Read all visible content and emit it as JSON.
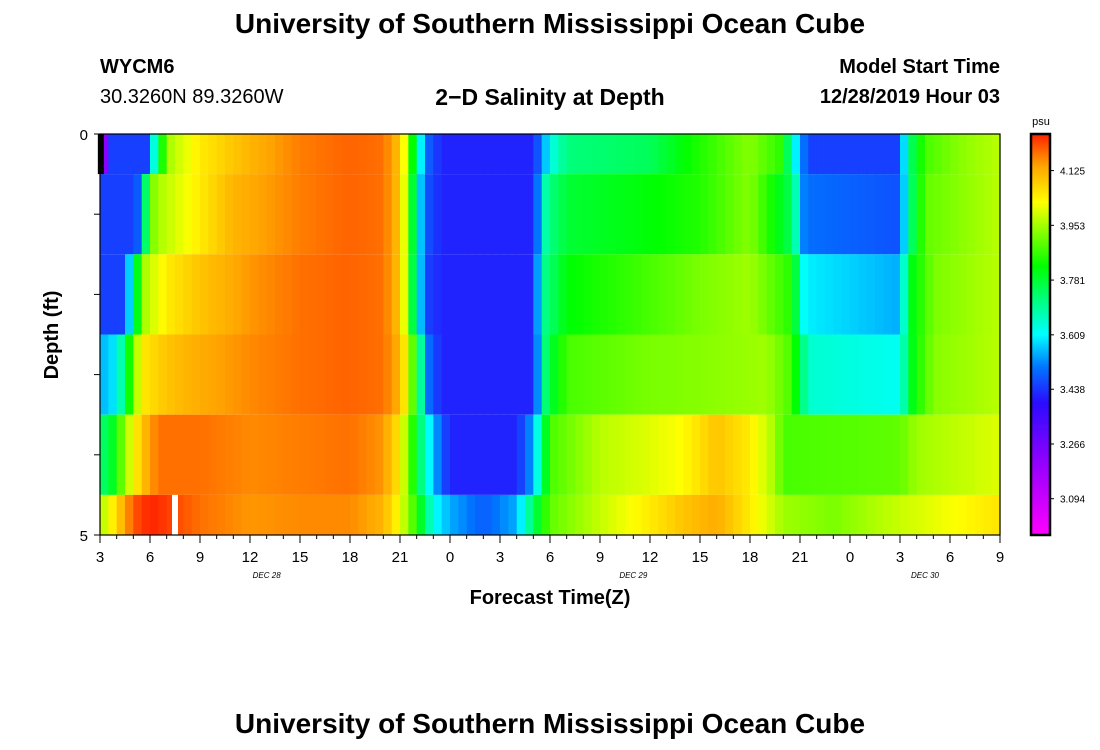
{
  "page": {
    "title_top": "University of Southern Mississippi Ocean Cube",
    "title_bottom": "University of Southern Mississippi Ocean Cube",
    "station_id": "WYCM6",
    "coordinates": "30.3260N 89.3260W",
    "subtitle": "2−D Salinity at Depth",
    "model_start_label": "Model Start Time",
    "model_start_value": "12/28/2019 Hour 03"
  },
  "chart_data": {
    "type": "heatmap",
    "title": "2-D Salinity at Depth",
    "xlabel": "Forecast Time(Z)",
    "ylabel": "Depth (ft)",
    "x_range": [
      0,
      54
    ],
    "y_range": [
      0,
      5
    ],
    "y_ticks": [
      {
        "value": 0,
        "label": "0"
      },
      {
        "value": 5,
        "label": "5"
      }
    ],
    "x_ticks": [
      {
        "h": 0,
        "label": "3"
      },
      {
        "h": 3,
        "label": "6"
      },
      {
        "h": 6,
        "label": "9"
      },
      {
        "h": 9,
        "label": "12"
      },
      {
        "h": 12,
        "label": "15"
      },
      {
        "h": 15,
        "label": "18"
      },
      {
        "h": 18,
        "label": "21"
      },
      {
        "h": 21,
        "label": "0"
      },
      {
        "h": 24,
        "label": "3"
      },
      {
        "h": 27,
        "label": "6"
      },
      {
        "h": 30,
        "label": "9"
      },
      {
        "h": 33,
        "label": "12"
      },
      {
        "h": 36,
        "label": "15"
      },
      {
        "h": 39,
        "label": "18"
      },
      {
        "h": 42,
        "label": "21"
      },
      {
        "h": 45,
        "label": "0"
      },
      {
        "h": 48,
        "label": "3"
      },
      {
        "h": 51,
        "label": "6"
      },
      {
        "h": 54,
        "label": "9"
      }
    ],
    "date_labels": [
      {
        "h": 10,
        "label": "DEC 28"
      },
      {
        "h": 32,
        "label": "DEC 29"
      },
      {
        "h": 49.5,
        "label": "DEC 30"
      }
    ],
    "colorbar": {
      "unit": "psu",
      "min": 2.98,
      "max": 4.24,
      "ticks": [
        3.094,
        3.266,
        3.438,
        3.609,
        3.781,
        3.953,
        4.125
      ]
    },
    "layers": [
      {
        "depth_range": [
          0.0,
          0.5
        ],
        "profile": [
          [
            0,
            3.0
          ],
          [
            0.5,
            3.45
          ],
          [
            2.8,
            3.45
          ],
          [
            3.4,
            3.7
          ],
          [
            4.0,
            3.95
          ],
          [
            6,
            4.05
          ],
          [
            9,
            4.12
          ],
          [
            12,
            4.17
          ],
          [
            15,
            4.19
          ],
          [
            17,
            4.18
          ],
          [
            18,
            4.1
          ],
          [
            18.5,
            3.95
          ],
          [
            19,
            3.7
          ],
          [
            19.5,
            3.5
          ],
          [
            20.5,
            3.42
          ],
          [
            26,
            3.42
          ],
          [
            27,
            3.62
          ],
          [
            28,
            3.72
          ],
          [
            33,
            3.75
          ],
          [
            35,
            3.82
          ],
          [
            39,
            3.93
          ],
          [
            41,
            3.85
          ],
          [
            41.5,
            3.65
          ],
          [
            42.5,
            3.45
          ],
          [
            48,
            3.45
          ],
          [
            48.5,
            3.72
          ],
          [
            49.5,
            3.88
          ],
          [
            52,
            3.94
          ],
          [
            54,
            3.97
          ]
        ]
      },
      {
        "depth_range": [
          0.5,
          1.5
        ],
        "profile": [
          [
            0,
            3.45
          ],
          [
            2.2,
            3.45
          ],
          [
            2.6,
            3.68
          ],
          [
            3.3,
            3.95
          ],
          [
            6,
            4.05
          ],
          [
            8,
            4.12
          ],
          [
            12,
            4.17
          ],
          [
            15,
            4.19
          ],
          [
            17,
            4.18
          ],
          [
            18,
            4.1
          ],
          [
            18.5,
            3.92
          ],
          [
            19,
            3.65
          ],
          [
            19.5,
            3.48
          ],
          [
            20.5,
            3.42
          ],
          [
            26,
            3.42
          ],
          [
            26.8,
            3.7
          ],
          [
            28,
            3.78
          ],
          [
            33,
            3.82
          ],
          [
            36,
            3.85
          ],
          [
            39,
            3.93
          ],
          [
            41.5,
            3.75
          ],
          [
            42.3,
            3.5
          ],
          [
            48,
            3.47
          ],
          [
            48.6,
            3.72
          ],
          [
            49.5,
            3.9
          ],
          [
            54,
            3.97
          ]
        ]
      },
      {
        "depth_range": [
          1.5,
          2.5
        ],
        "profile": [
          [
            0,
            3.45
          ],
          [
            1.5,
            3.45
          ],
          [
            2.0,
            3.7
          ],
          [
            2.6,
            3.95
          ],
          [
            4,
            4.05
          ],
          [
            6,
            4.1
          ],
          [
            9,
            4.15
          ],
          [
            12,
            4.18
          ],
          [
            15,
            4.19
          ],
          [
            17,
            4.18
          ],
          [
            18,
            4.1
          ],
          [
            18.5,
            3.92
          ],
          [
            19,
            3.62
          ],
          [
            19.7,
            3.45
          ],
          [
            20.5,
            3.42
          ],
          [
            26,
            3.42
          ],
          [
            26.6,
            3.7
          ],
          [
            28,
            3.82
          ],
          [
            33,
            3.88
          ],
          [
            36,
            3.92
          ],
          [
            39,
            3.95
          ],
          [
            41.5,
            3.85
          ],
          [
            42.3,
            3.6
          ],
          [
            48,
            3.55
          ],
          [
            48.6,
            3.8
          ],
          [
            50,
            3.92
          ],
          [
            54,
            3.97
          ]
        ]
      },
      {
        "depth_range": [
          2.5,
          3.5
        ],
        "profile": [
          [
            0,
            3.55
          ],
          [
            1.0,
            3.6
          ],
          [
            1.8,
            3.85
          ],
          [
            2.5,
            4.05
          ],
          [
            4,
            4.1
          ],
          [
            6,
            4.13
          ],
          [
            9,
            4.16
          ],
          [
            12,
            4.18
          ],
          [
            15,
            4.19
          ],
          [
            17,
            4.18
          ],
          [
            18,
            4.12
          ],
          [
            18.5,
            4.0
          ],
          [
            19,
            3.8
          ],
          [
            19.7,
            3.5
          ],
          [
            20.5,
            3.42
          ],
          [
            26,
            3.42
          ],
          [
            26.8,
            3.75
          ],
          [
            28,
            3.88
          ],
          [
            33,
            3.92
          ],
          [
            36,
            3.93
          ],
          [
            40,
            3.95
          ],
          [
            41.5,
            3.88
          ],
          [
            42.5,
            3.65
          ],
          [
            48,
            3.62
          ],
          [
            48.8,
            3.82
          ],
          [
            50,
            3.93
          ],
          [
            54,
            3.97
          ]
        ]
      },
      {
        "depth_range": [
          3.5,
          4.5
        ],
        "profile": [
          [
            0,
            3.72
          ],
          [
            0.8,
            3.8
          ],
          [
            1.5,
            3.95
          ],
          [
            2.5,
            4.1
          ],
          [
            3.5,
            4.18
          ],
          [
            6,
            4.18
          ],
          [
            9,
            4.16
          ],
          [
            12,
            4.17
          ],
          [
            15,
            4.18
          ],
          [
            17,
            4.15
          ],
          [
            18,
            4.05
          ],
          [
            18.5,
            3.92
          ],
          [
            19.5,
            3.65
          ],
          [
            20.5,
            3.48
          ],
          [
            21,
            3.42
          ],
          [
            25,
            3.42
          ],
          [
            26,
            3.55
          ],
          [
            27,
            3.88
          ],
          [
            30,
            3.97
          ],
          [
            33,
            4.0
          ],
          [
            35,
            4.03
          ],
          [
            37,
            4.1
          ],
          [
            39,
            4.05
          ],
          [
            40.5,
            3.95
          ],
          [
            41,
            3.88
          ],
          [
            48,
            3.9
          ],
          [
            49,
            3.95
          ],
          [
            52,
            3.98
          ],
          [
            54,
            4.0
          ]
        ]
      },
      {
        "depth_range": [
          4.5,
          5.0
        ],
        "profile": [
          [
            0,
            3.95
          ],
          [
            1.2,
            4.1
          ],
          [
            2,
            4.2
          ],
          [
            3,
            4.24
          ],
          [
            4,
            4.22
          ],
          [
            5,
            4.2
          ],
          [
            6,
            4.18
          ],
          [
            9,
            4.15
          ],
          [
            12,
            4.16
          ],
          [
            15,
            4.16
          ],
          [
            17,
            4.12
          ],
          [
            18,
            4.02
          ],
          [
            19,
            3.85
          ],
          [
            20,
            3.62
          ],
          [
            21,
            3.55
          ],
          [
            23,
            3.48
          ],
          [
            25,
            3.55
          ],
          [
            26,
            3.75
          ],
          [
            27,
            3.9
          ],
          [
            30,
            3.98
          ],
          [
            33,
            4.05
          ],
          [
            35,
            4.1
          ],
          [
            37,
            4.13
          ],
          [
            39,
            4.05
          ],
          [
            41,
            3.95
          ],
          [
            44,
            3.92
          ],
          [
            47,
            3.97
          ],
          [
            51,
            4.02
          ],
          [
            54,
            4.06
          ]
        ]
      }
    ],
    "annotations": [
      {
        "type": "missing-bar",
        "color": "#000000",
        "h": 0.05,
        "depth_range": [
          0.0,
          0.5
        ]
      },
      {
        "type": "missing-bar",
        "color": "#ffffff",
        "h": 4.5,
        "depth_range": [
          4.5,
          5.0
        ]
      }
    ]
  }
}
